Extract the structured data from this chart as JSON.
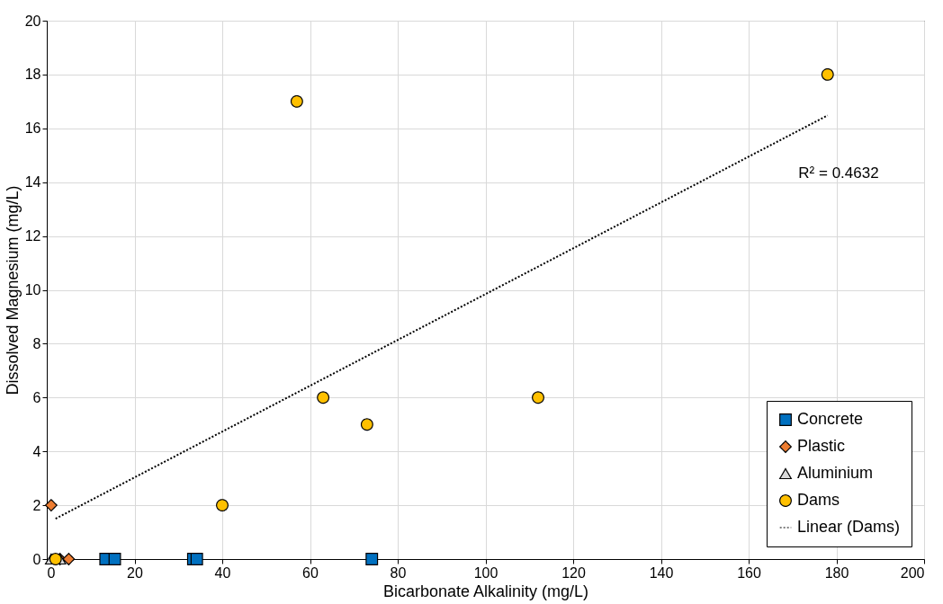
{
  "chart_data": {
    "type": "scatter",
    "xlabel": "Bicarbonate Alkalinity (mg/L)",
    "ylabel": "Dissolved Magnesium (mg/L)",
    "xlim": [
      0,
      200
    ],
    "xticks": [
      0,
      20,
      40,
      60,
      80,
      100,
      120,
      140,
      160,
      180,
      200
    ],
    "ylim": [
      0,
      20
    ],
    "yticks": [
      0,
      2,
      4,
      6,
      8,
      10,
      12,
      14,
      16,
      18,
      20
    ],
    "grid": true,
    "legend": "bottom right",
    "series": [
      {
        "name": "Concrete",
        "color": "#0070c0",
        "marker": "square",
        "x": [
          13.4,
          15.5,
          33.4,
          34.2,
          74.1
        ],
        "values": [
          0,
          0,
          0,
          0,
          0
        ]
      },
      {
        "name": "Plastic",
        "color": "#ed7d31",
        "marker": "diamond",
        "x": [
          1,
          3,
          5
        ],
        "values": [
          2,
          0,
          0
        ]
      },
      {
        "name": "Aluminium",
        "color": "#d9d9d9",
        "marker": "triangle",
        "x": [
          1,
          3
        ],
        "values": [
          0,
          0
        ]
      },
      {
        "name": "Dams",
        "color": "#ffc000",
        "marker": "circle",
        "x": [
          2,
          40,
          57,
          63,
          73,
          112,
          178
        ],
        "values": [
          0,
          2,
          17,
          6,
          5,
          6,
          18
        ]
      },
      {
        "name": "Linear (Dams)",
        "type": "line",
        "line_style": "dotted",
        "color": "#000000",
        "x": [
          2,
          178
        ],
        "values": [
          1.5,
          16.48
        ]
      }
    ],
    "annotations": [
      "R² = 0.4632"
    ]
  }
}
